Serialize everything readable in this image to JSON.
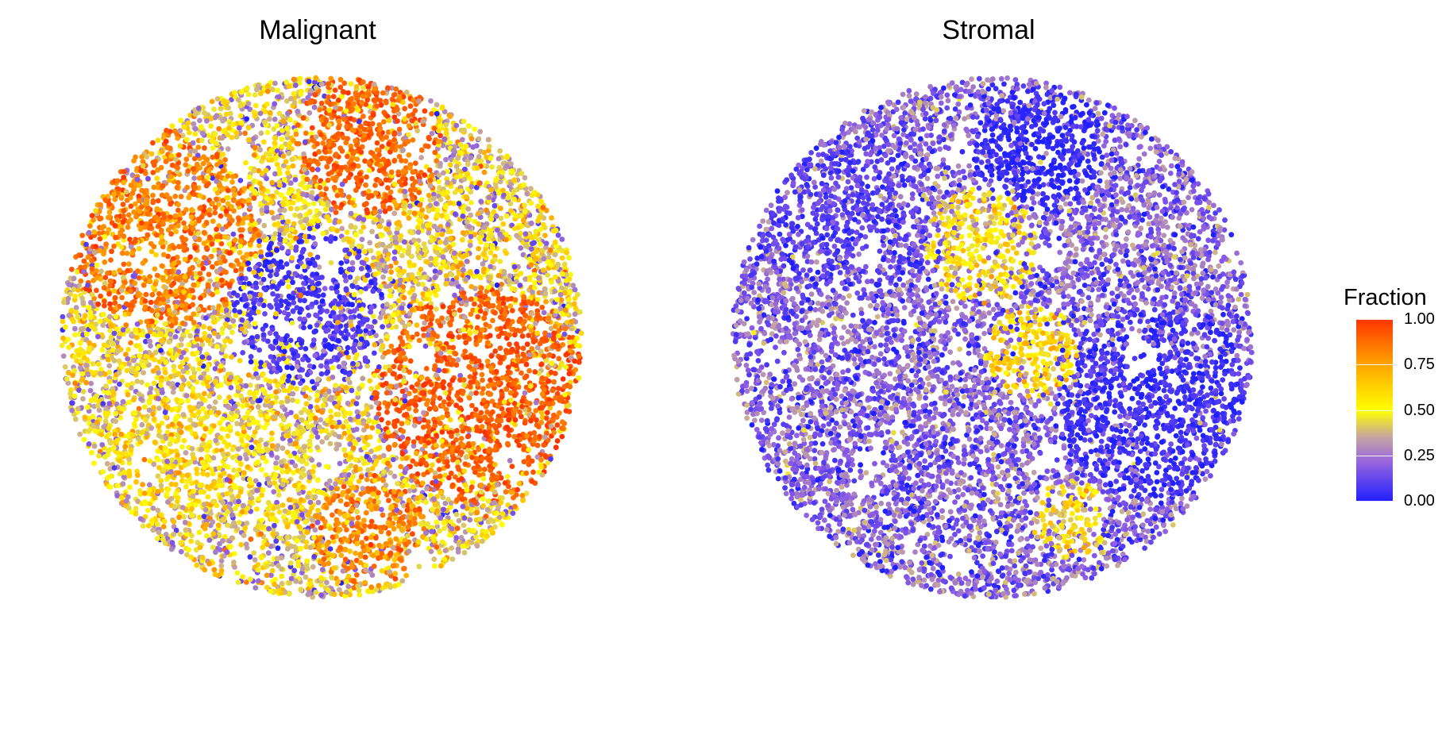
{
  "chart_data": [
    {
      "type": "scatter",
      "title": "Malignant",
      "xlabel": "",
      "ylabel": "",
      "grid": false,
      "color_variable": "Fraction",
      "color_range": [
        0,
        1
      ],
      "description_regions": [
        {
          "cx": 0.0,
          "cy": 0.0,
          "r": 1.0,
          "level": 0.45,
          "spread": 0.25
        },
        {
          "cx": -0.62,
          "cy": 0.42,
          "r": 0.38,
          "level": 0.85,
          "spread": 0.12
        },
        {
          "cx": 0.18,
          "cy": 0.75,
          "r": 0.28,
          "level": 0.9,
          "spread": 0.08
        },
        {
          "cx": 0.62,
          "cy": -0.22,
          "r": 0.42,
          "level": 0.92,
          "spread": 0.08
        },
        {
          "cx": 0.18,
          "cy": -0.75,
          "r": 0.22,
          "level": 0.82,
          "spread": 0.12
        },
        {
          "cx": -0.05,
          "cy": 0.1,
          "r": 0.3,
          "level": 0.08,
          "spread": 0.08
        },
        {
          "cx": -0.55,
          "cy": -0.45,
          "r": 0.25,
          "level": 0.55,
          "spread": 0.18
        }
      ]
    },
    {
      "type": "scatter",
      "title": "Stromal",
      "xlabel": "",
      "ylabel": "",
      "grid": false,
      "color_variable": "Fraction",
      "color_range": [
        0,
        1
      ],
      "description_regions": [
        {
          "cx": 0.0,
          "cy": 0.0,
          "r": 1.0,
          "level": 0.18,
          "spread": 0.15
        },
        {
          "cx": 0.18,
          "cy": 0.72,
          "r": 0.25,
          "level": 0.03,
          "spread": 0.05
        },
        {
          "cx": 0.62,
          "cy": -0.25,
          "r": 0.38,
          "level": 0.05,
          "spread": 0.06
        },
        {
          "cx": -0.05,
          "cy": 0.35,
          "r": 0.22,
          "level": 0.55,
          "spread": 0.15
        },
        {
          "cx": 0.15,
          "cy": -0.05,
          "r": 0.18,
          "level": 0.6,
          "spread": 0.15
        },
        {
          "cx": -0.55,
          "cy": 0.45,
          "r": 0.3,
          "level": 0.1,
          "spread": 0.08
        },
        {
          "cx": 0.3,
          "cy": -0.7,
          "r": 0.15,
          "level": 0.5,
          "spread": 0.2
        }
      ]
    }
  ],
  "legend": {
    "title": "Fraction",
    "ticks": [
      "1.00",
      "0.75",
      "0.50",
      "0.25",
      "0.00"
    ],
    "colors": [
      "#1f1fff",
      "#9966dd",
      "#c4a3a3",
      "#ffff00",
      "#ffa500",
      "#ff3300"
    ]
  }
}
